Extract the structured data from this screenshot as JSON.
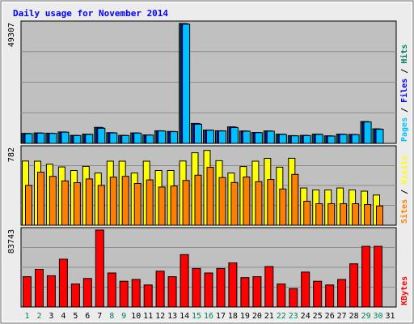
{
  "chart_data": {
    "type": "bar",
    "title": "Daily usage for November 2014",
    "categories": [
      "1",
      "2",
      "3",
      "4",
      "5",
      "6",
      "7",
      "8",
      "9",
      "10",
      "11",
      "12",
      "13",
      "14",
      "15",
      "16",
      "17",
      "18",
      "19",
      "20",
      "21",
      "22",
      "23",
      "24",
      "25",
      "26",
      "27",
      "28",
      "29",
      "30",
      "31"
    ],
    "weekend_days": [
      "1",
      "2",
      "8",
      "9",
      "15",
      "16",
      "22",
      "23",
      "29",
      "30"
    ],
    "panels": [
      {
        "name": "hits-files-pages",
        "max_label": "49307",
        "ymax": 49307,
        "series": [
          {
            "name": "Hits",
            "color": "#00805c",
            "values": [
              4100,
              4300,
              4200,
              4700,
              3300,
              3800,
              6600,
              4400,
              3300,
              4300,
              3500,
              5200,
              4900,
              49300,
              8200,
              5500,
              5200,
              6800,
              5100,
              4500,
              5100,
              3800,
              3200,
              3300,
              3800,
              3100,
              3800,
              3700,
              9000,
              6000,
              0
            ]
          },
          {
            "name": "Files",
            "color": "#0000ff",
            "values": [
              4050,
              4250,
              4150,
              4650,
              3250,
              3750,
              6500,
              4350,
              3250,
              4250,
              3450,
              5150,
              4850,
              49200,
              8100,
              5450,
              5150,
              6700,
              5050,
              4450,
              5050,
              3750,
              3150,
              3250,
              3750,
              3050,
              3750,
              3650,
              8900,
              5900,
              0
            ]
          },
          {
            "name": "Pages",
            "color": "#00c0ff",
            "values": [
              4000,
              4200,
              4100,
              4600,
              3200,
              3700,
              6200,
              4300,
              3200,
              4200,
              3400,
              5100,
              4800,
              49000,
              7900,
              5400,
              5100,
              6500,
              5000,
              4400,
              5000,
              3700,
              3100,
              3200,
              3700,
              3000,
              3700,
              3600,
              8800,
              5800,
              0
            ]
          }
        ]
      },
      {
        "name": "visits-sites",
        "max_label": "782",
        "ymax": 782,
        "series": [
          {
            "name": "Visits",
            "color": "#ffff00",
            "values": [
              652,
              650,
              620,
              592,
              556,
              598,
              530,
              650,
              650,
              530,
              650,
              556,
              556,
              652,
              736,
              760,
              655,
              530,
              596,
              650,
              679,
              589,
              680,
              378,
              358,
              358,
              378,
              358,
              346,
              306,
              0
            ]
          },
          {
            "name": "Sites",
            "color": "#ff8000",
            "values": [
              404,
              538,
              496,
              450,
              432,
              470,
              404,
              488,
              496,
              424,
              460,
              388,
              398,
              454,
              508,
              588,
              484,
              434,
              490,
              442,
              464,
              368,
              516,
              244,
              218,
              218,
              218,
              218,
              210,
              196,
              0
            ]
          }
        ]
      },
      {
        "name": "kbytes",
        "max_label": "83743",
        "ymax": 83743,
        "series": [
          {
            "name": "KBytes",
            "color": "#ff0000",
            "values": [
              33000,
              41000,
              34000,
              52000,
              25000,
              31000,
              83700,
              37000,
              28000,
              30000,
              24000,
              39000,
              33000,
              57000,
              42000,
              37000,
              42000,
              48000,
              32000,
              33000,
              44000,
              25000,
              20000,
              38000,
              28000,
              24000,
              30000,
              47000,
              66000,
              66000,
              0
            ]
          }
        ]
      }
    ],
    "right_labels": [
      {
        "panel": 0,
        "parts": [
          {
            "text": "Pages",
            "color": "#00c0ff"
          },
          {
            "text": " / ",
            "color": "#000000"
          },
          {
            "text": "Files",
            "color": "#0000ff"
          },
          {
            "text": " / ",
            "color": "#000000"
          },
          {
            "text": "Hits",
            "color": "#00805c"
          }
        ]
      },
      {
        "panel": 1,
        "parts": [
          {
            "text": "Sites",
            "color": "#ff8000"
          },
          {
            "text": " / ",
            "color": "#000000"
          },
          {
            "text": "Visits",
            "color": "#ffff00"
          }
        ]
      },
      {
        "panel": 2,
        "parts": [
          {
            "text": "KBytes",
            "color": "#ff0000"
          }
        ]
      }
    ],
    "colors": {
      "background": "#ececec",
      "plot": "#c0c0c0",
      "title": "#0000ff",
      "weekday_label": "#000000",
      "weekend_label": "#00805c",
      "grid": "#8c8c8c"
    }
  }
}
